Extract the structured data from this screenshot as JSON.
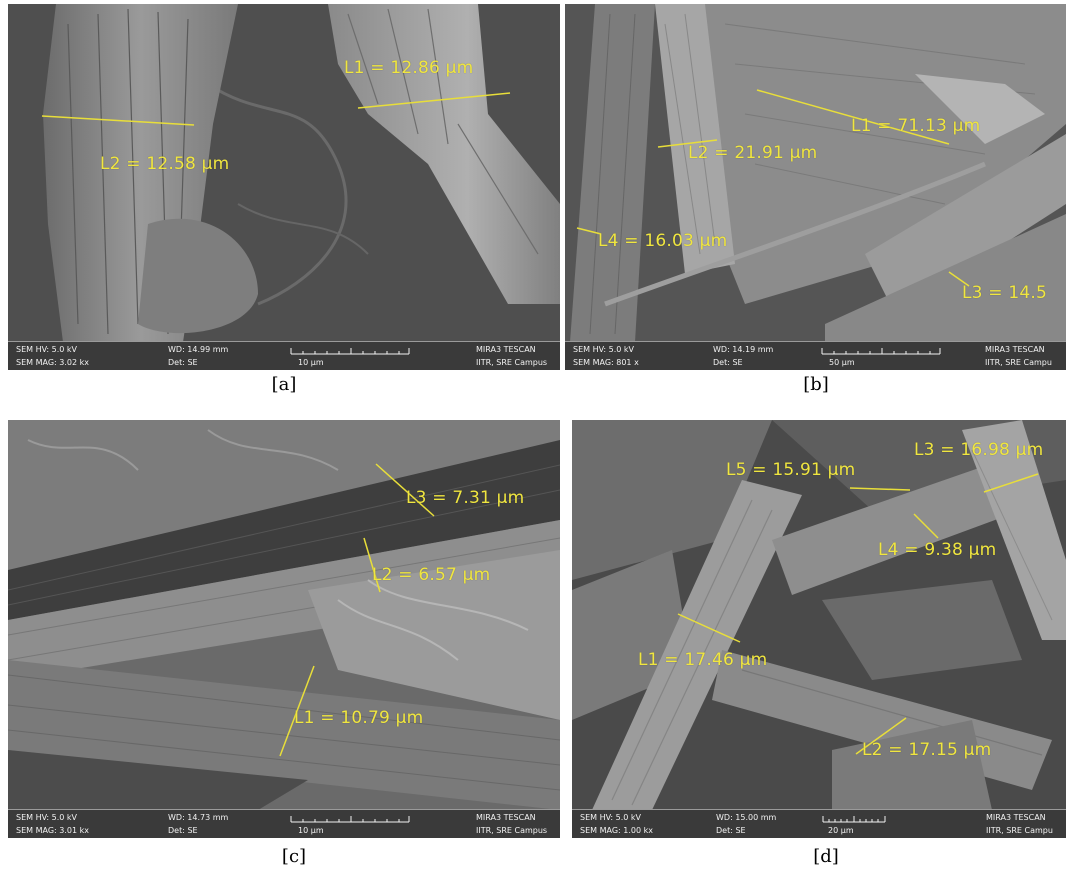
{
  "panels": [
    {
      "caption": "[a]",
      "measurements": [
        "L1 = 12.86 µm",
        "L2 = 12.58 µm"
      ],
      "info": {
        "sem_hv": "SEM HV: 5.0 kV",
        "sem_mag": "SEM MAG: 3.02 kx",
        "wd": "WD: 14.99 mm",
        "det": "Det: SE",
        "scale": "10 µm",
        "instrument": "MIRA3 TESCAN",
        "site": "IITR, SRE Campus"
      }
    },
    {
      "caption": "[b]",
      "measurements": [
        "L1 = 71.13 µm",
        "L2 = 21.91 µm",
        "L4 = 16.03 µm",
        "L3 = 14.5"
      ],
      "info": {
        "sem_hv": "SEM HV: 5.0 kV",
        "sem_mag": "SEM MAG: 801 x",
        "wd": "WD: 14.19 mm",
        "det": "Det: SE",
        "scale": "50 µm",
        "instrument": "MIRA3 TESCAN",
        "site": "IITR, SRE Campu"
      }
    },
    {
      "caption": "[c]",
      "measurements": [
        "L3 = 7.31 µm",
        "L2 = 6.57 µm",
        "L1 = 10.79 µm"
      ],
      "info": {
        "sem_hv": "SEM HV: 5.0 kV",
        "sem_mag": "SEM MAG: 3.01 kx",
        "wd": "WD: 14.73 mm",
        "det": "Det: SE",
        "scale": "10 µm",
        "instrument": "MIRA3 TESCAN",
        "site": "IITR, SRE Campus"
      }
    },
    {
      "caption": "[d]",
      "measurements": [
        "L5 = 15.91 µm",
        "L3 = 16.98 µm",
        "L4 = 9.38 µm",
        "L1 = 17.46 µm",
        "L2 = 17.15 µm"
      ],
      "info": {
        "sem_hv": "SEM HV: 5.0 kV",
        "sem_mag": "SEM MAG: 1.00 kx",
        "wd": "WD: 15.00 mm",
        "det": "Det: SE",
        "scale": "20 µm",
        "instrument": "MIRA3 TESCAN",
        "site": "IITR, SRE Campu"
      }
    }
  ],
  "colors": {
    "measurement": "#f0e640",
    "background": "#5e5e5e",
    "infobar": "#3a3a3a"
  }
}
